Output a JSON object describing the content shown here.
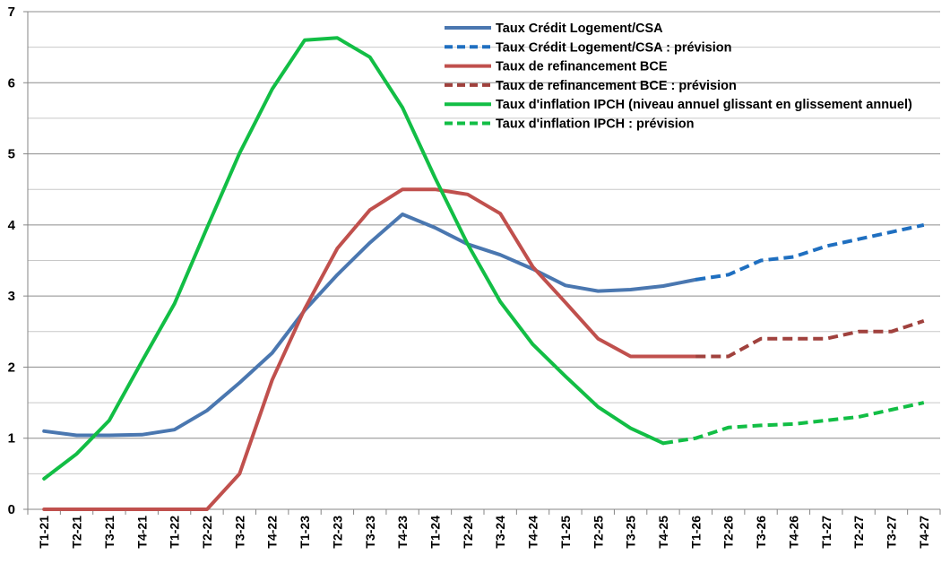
{
  "chart_data": {
    "type": "line",
    "categories": [
      "T1-21",
      "T2-21",
      "T3-21",
      "T4-21",
      "T1-22",
      "T2-22",
      "T3-22",
      "T4-22",
      "T1-23",
      "T2-23",
      "T3-23",
      "T4-23",
      "T1-24",
      "T2-24",
      "T3-24",
      "T4-24",
      "T1-25",
      "T2-25",
      "T3-25",
      "T4-25",
      "T1-26",
      "T2-26",
      "T3-26",
      "T4-26",
      "T1-27",
      "T2-27",
      "T3-27",
      "T4-27"
    ],
    "ylim": [
      0,
      7
    ],
    "yticks": [
      0,
      1,
      2,
      3,
      4,
      5,
      6,
      7
    ],
    "grid": true,
    "legend_position": "top-right",
    "series": [
      {
        "name": "Taux Crédit Logement/CSA",
        "color": "#4A77B0",
        "dash": "solid",
        "values": [
          1.1,
          1.04,
          1.04,
          1.05,
          1.12,
          1.39,
          1.78,
          2.2,
          2.8,
          3.3,
          3.75,
          4.15,
          3.96,
          3.73,
          3.58,
          3.38,
          3.15,
          3.07,
          3.09,
          3.14,
          3.23,
          null,
          null,
          null,
          null,
          null,
          null,
          null
        ]
      },
      {
        "name": "Taux Crédit Logement/CSA : prévision",
        "color": "#1F6FC0",
        "dash": "dashed",
        "values": [
          null,
          null,
          null,
          null,
          null,
          null,
          null,
          null,
          null,
          null,
          null,
          null,
          null,
          null,
          null,
          null,
          null,
          null,
          null,
          null,
          3.23,
          3.3,
          3.5,
          3.55,
          3.7,
          3.8,
          3.9,
          4.0
        ]
      },
      {
        "name": "Taux de refinancement BCE",
        "color": "#C0504D",
        "dash": "solid",
        "values": [
          0,
          0,
          0,
          0,
          0,
          0,
          0.5,
          1.82,
          2.82,
          3.67,
          4.21,
          4.5,
          4.5,
          4.43,
          4.16,
          3.41,
          2.91,
          2.4,
          2.15,
          2.15,
          2.15,
          null,
          null,
          null,
          null,
          null,
          null,
          null
        ]
      },
      {
        "name": "Taux de refinancement BCE : prévision",
        "color": "#A0413D",
        "dash": "dashed",
        "values": [
          null,
          null,
          null,
          null,
          null,
          null,
          null,
          null,
          null,
          null,
          null,
          null,
          null,
          null,
          null,
          null,
          null,
          null,
          null,
          null,
          2.15,
          2.15,
          2.4,
          2.4,
          2.4,
          2.5,
          2.5,
          2.65
        ]
      },
      {
        "name": "Taux d'inflation IPCH (niveau annuel glissant en glissement annuel)",
        "color": "#12BE45",
        "dash": "solid",
        "values": [
          0.43,
          0.78,
          1.25,
          2.08,
          2.89,
          3.96,
          5.01,
          5.91,
          6.6,
          6.63,
          6.36,
          5.65,
          4.66,
          3.73,
          2.92,
          2.32,
          1.87,
          1.44,
          1.14,
          0.93,
          null,
          null,
          null,
          null,
          null,
          null,
          null,
          null
        ]
      },
      {
        "name": "Taux d'inflation IPCH : prévision",
        "color": "#12BE45",
        "dash": "dashed",
        "values": [
          null,
          null,
          null,
          null,
          null,
          null,
          null,
          null,
          null,
          null,
          null,
          null,
          null,
          null,
          null,
          null,
          null,
          null,
          null,
          0.93,
          1.0,
          1.15,
          1.18,
          1.2,
          1.25,
          1.3,
          1.4,
          1.5
        ]
      }
    ]
  }
}
